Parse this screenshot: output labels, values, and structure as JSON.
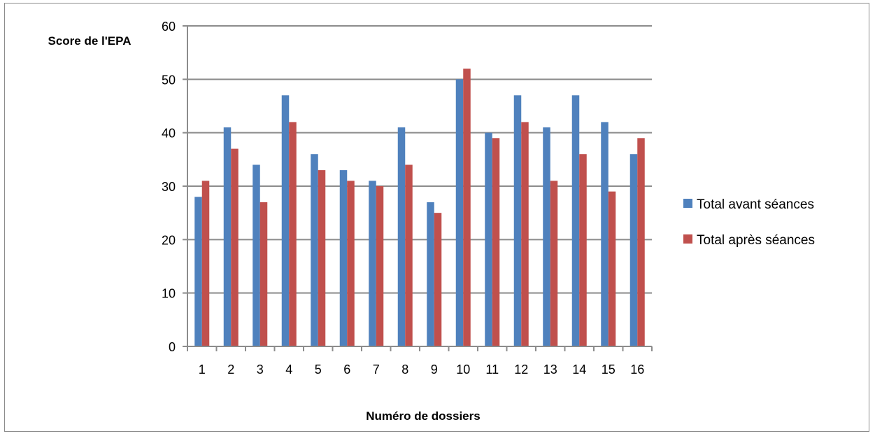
{
  "chart_data": {
    "type": "bar",
    "title": "",
    "ylabel": "Score de l'EPA",
    "xlabel": "Numéro de dossiers",
    "categories": [
      "1",
      "2",
      "3",
      "4",
      "5",
      "6",
      "7",
      "8",
      "9",
      "10",
      "11",
      "12",
      "13",
      "14",
      "15",
      "16"
    ],
    "ylim": [
      0,
      60
    ],
    "yticks": [
      0,
      10,
      20,
      30,
      40,
      50,
      60
    ],
    "grid": true,
    "legend_position": "right",
    "series": [
      {
        "name": "Total avant séances",
        "color": "#4f81bd",
        "values": [
          28,
          41,
          34,
          47,
          36,
          33,
          31,
          41,
          27,
          50,
          40,
          47,
          41,
          47,
          42,
          36
        ]
      },
      {
        "name": "Total après séances",
        "color": "#c0504d",
        "values": [
          31,
          37,
          27,
          42,
          33,
          31,
          30,
          34,
          25,
          52,
          39,
          42,
          31,
          36,
          29,
          39
        ]
      }
    ]
  }
}
